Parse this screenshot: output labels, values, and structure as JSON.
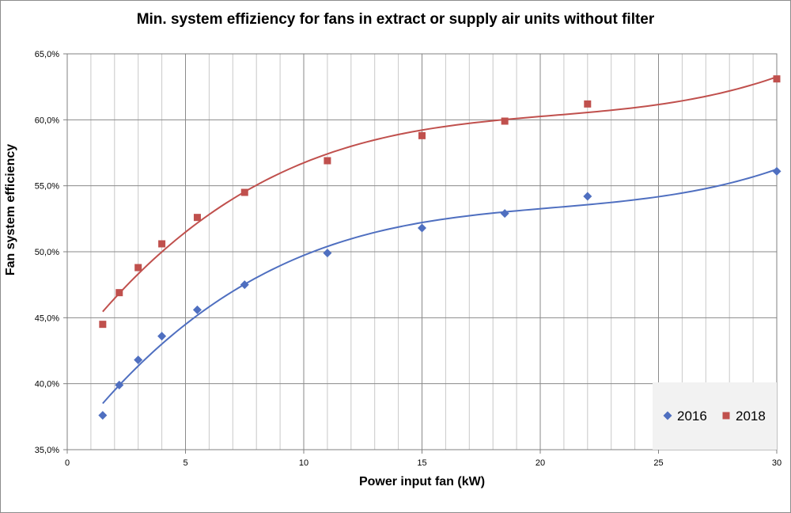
{
  "chart_data": {
    "type": "scatter",
    "title": "Min. system effiziency for fans in extract or supply air units without filter",
    "xlabel": "Power input fan (kW)",
    "ylabel": "Fan system efficiency",
    "xlim": [
      0,
      30
    ],
    "ylim": [
      35,
      65
    ],
    "x_ticks": [
      "0",
      "5",
      "10",
      "15",
      "20",
      "25",
      "30"
    ],
    "y_ticks": [
      "35,0%",
      "40,0%",
      "45,0%",
      "50,0%",
      "55,0%",
      "60,0%",
      "65,0%"
    ],
    "grid": true,
    "legend_position": "bottom-right",
    "series": [
      {
        "name": "2016",
        "color": "#4f6fc0",
        "marker": "diamond",
        "x": [
          1.5,
          2.2,
          3,
          4,
          5.5,
          7.5,
          11,
          15,
          18.5,
          22,
          30
        ],
        "y": [
          37.6,
          39.9,
          41.8,
          43.6,
          45.6,
          47.5,
          49.9,
          51.8,
          52.9,
          54.2,
          56.1
        ],
        "trendline": true
      },
      {
        "name": "2018",
        "color": "#c0504d",
        "marker": "square",
        "x": [
          1.5,
          2.2,
          3,
          4,
          5.5,
          7.5,
          11,
          15,
          18.5,
          22,
          30
        ],
        "y": [
          44.5,
          46.9,
          48.8,
          50.6,
          52.6,
          54.5,
          56.9,
          58.8,
          59.9,
          61.2,
          63.1
        ],
        "trendline": true
      }
    ]
  }
}
